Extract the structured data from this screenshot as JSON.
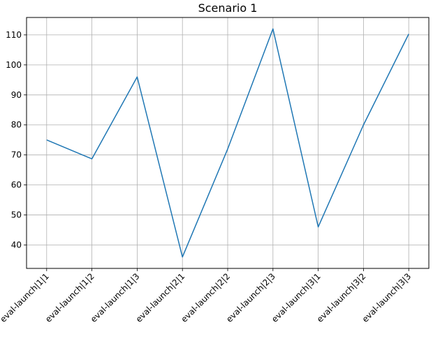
{
  "chart_data": {
    "type": "line",
    "title": "Scenario 1",
    "xlabel": "",
    "ylabel": "",
    "categories": [
      "eval-launch|1|1",
      "eval-launch|1|2",
      "eval-launch|1|3",
      "eval-launch|2|1",
      "eval-launch|2|2",
      "eval-launch|2|3",
      "eval-launch|3|1",
      "eval-launch|3|2",
      "eval-launch|3|3"
    ],
    "series": [
      {
        "values": [
          75.0,
          68.7,
          96.0,
          36.0,
          72.0,
          112.0,
          46.0,
          80.0,
          110.3
        ],
        "color": "#1f77b4"
      }
    ],
    "ylim": [
      32.2,
      115.8
    ],
    "yticks": [
      40,
      50,
      60,
      70,
      80,
      90,
      100,
      110
    ],
    "grid": true,
    "legend": "none"
  }
}
